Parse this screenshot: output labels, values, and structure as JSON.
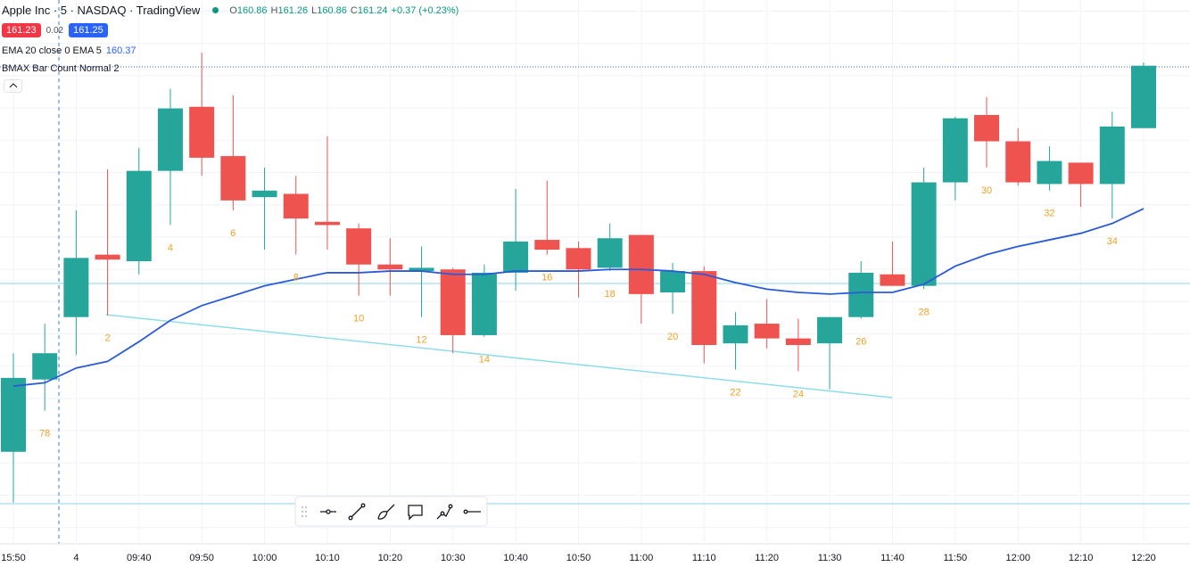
{
  "header": {
    "symbol": "Apple Inc · 5 · NASDAQ · TradingView",
    "ohlc": [
      {
        "key": "O",
        "value": "160.86"
      },
      {
        "key": "H",
        "value": "161.26"
      },
      {
        "key": "L",
        "value": "160.86"
      },
      {
        "key": "C",
        "value": "161.24"
      }
    ],
    "change": "+0.37 (+0.23%)",
    "bid": "161.23",
    "spread": "0.02",
    "ask": "161.25",
    "indicator": "EMA 20 close 0 EMA 5",
    "indicator_value": "160.37",
    "study": "BMAX Bar Count Normal 2"
  },
  "chart_data": {
    "type": "candlestick",
    "categories": [
      "15:50",
      null,
      "4",
      null,
      "09:40",
      null,
      "09:50",
      null,
      "10:00",
      null,
      "10:10",
      null,
      "10:20",
      null,
      "10:30",
      null,
      "10:40",
      null,
      "10:50",
      null,
      "11:00",
      null,
      "11:10",
      null,
      "11:20",
      null,
      "11:30",
      null,
      "11:40",
      null,
      "11:50",
      null,
      "12:00",
      null,
      "12:10",
      null,
      "12:20"
    ],
    "open": [
      158.89,
      159.33,
      159.71,
      160.09,
      160.05,
      160.6,
      160.99,
      160.69,
      160.44,
      160.46,
      160.29,
      160.25,
      160.03,
      159.99,
      160.0,
      159.6,
      159.98,
      160.18,
      160.13,
      160.01,
      160.21,
      159.86,
      159.99,
      159.55,
      159.67,
      159.58,
      159.55,
      159.71,
      159.97,
      159.9,
      160.53,
      160.94,
      160.78,
      160.52,
      160.65,
      160.52,
      160.86
    ],
    "high": [
      159.49,
      159.67,
      160.36,
      160.61,
      160.74,
      161.1,
      161.32,
      161.06,
      160.62,
      160.57,
      160.81,
      160.28,
      160.19,
      160.14,
      160.01,
      160.03,
      160.49,
      160.54,
      160.17,
      160.28,
      160.21,
      160.04,
      160.02,
      159.74,
      159.82,
      159.7,
      159.71,
      160.05,
      160.17,
      160.62,
      160.93,
      161.05,
      160.86,
      160.75,
      160.65,
      160.96,
      161.26
    ],
    "low": [
      158.58,
      159.14,
      159.48,
      159.72,
      159.97,
      160.27,
      160.57,
      160.36,
      160.12,
      160.09,
      160.12,
      159.84,
      159.84,
      159.71,
      159.49,
      159.59,
      159.87,
      160.09,
      159.83,
      159.99,
      159.67,
      159.73,
      159.43,
      159.39,
      159.52,
      159.38,
      159.27,
      159.7,
      159.9,
      159.88,
      160.42,
      160.62,
      160.51,
      160.48,
      160.38,
      160.31,
      160.86
    ],
    "close": [
      159.34,
      159.49,
      160.07,
      160.06,
      160.6,
      160.98,
      160.68,
      160.42,
      160.48,
      160.31,
      160.27,
      160.03,
      160.0,
      160.01,
      159.6,
      159.98,
      160.17,
      160.12,
      160.0,
      160.19,
      159.85,
      159.99,
      159.54,
      159.66,
      159.58,
      159.54,
      159.71,
      159.98,
      159.9,
      160.53,
      160.92,
      160.78,
      160.53,
      160.66,
      160.52,
      160.87,
      161.24
    ],
    "up_color": "#26a69a",
    "down_color": "#ef5350",
    "ema": {
      "color": "#2a5bd7",
      "values": [
        159.29,
        159.31,
        159.4,
        159.44,
        159.56,
        159.69,
        159.78,
        159.84,
        159.9,
        159.94,
        159.98,
        159.98,
        159.99,
        159.99,
        159.97,
        159.97,
        159.99,
        159.99,
        159.99,
        160.0,
        160.0,
        159.99,
        159.97,
        159.92,
        159.88,
        159.86,
        159.85,
        159.86,
        159.86,
        159.91,
        160.02,
        160.09,
        160.14,
        160.18,
        160.22,
        160.28,
        160.37
      ]
    },
    "bar_count": {
      "color": "#f0a023",
      "values": [
        null,
        78,
        null,
        2,
        null,
        4,
        null,
        6,
        null,
        8,
        null,
        10,
        null,
        12,
        null,
        14,
        null,
        16,
        null,
        18,
        null,
        20,
        null,
        22,
        null,
        24,
        null,
        26,
        null,
        28,
        null,
        30,
        null,
        32,
        null,
        34,
        null
      ]
    },
    "ylim": [
      158.33,
      161.64
    ]
  }
}
